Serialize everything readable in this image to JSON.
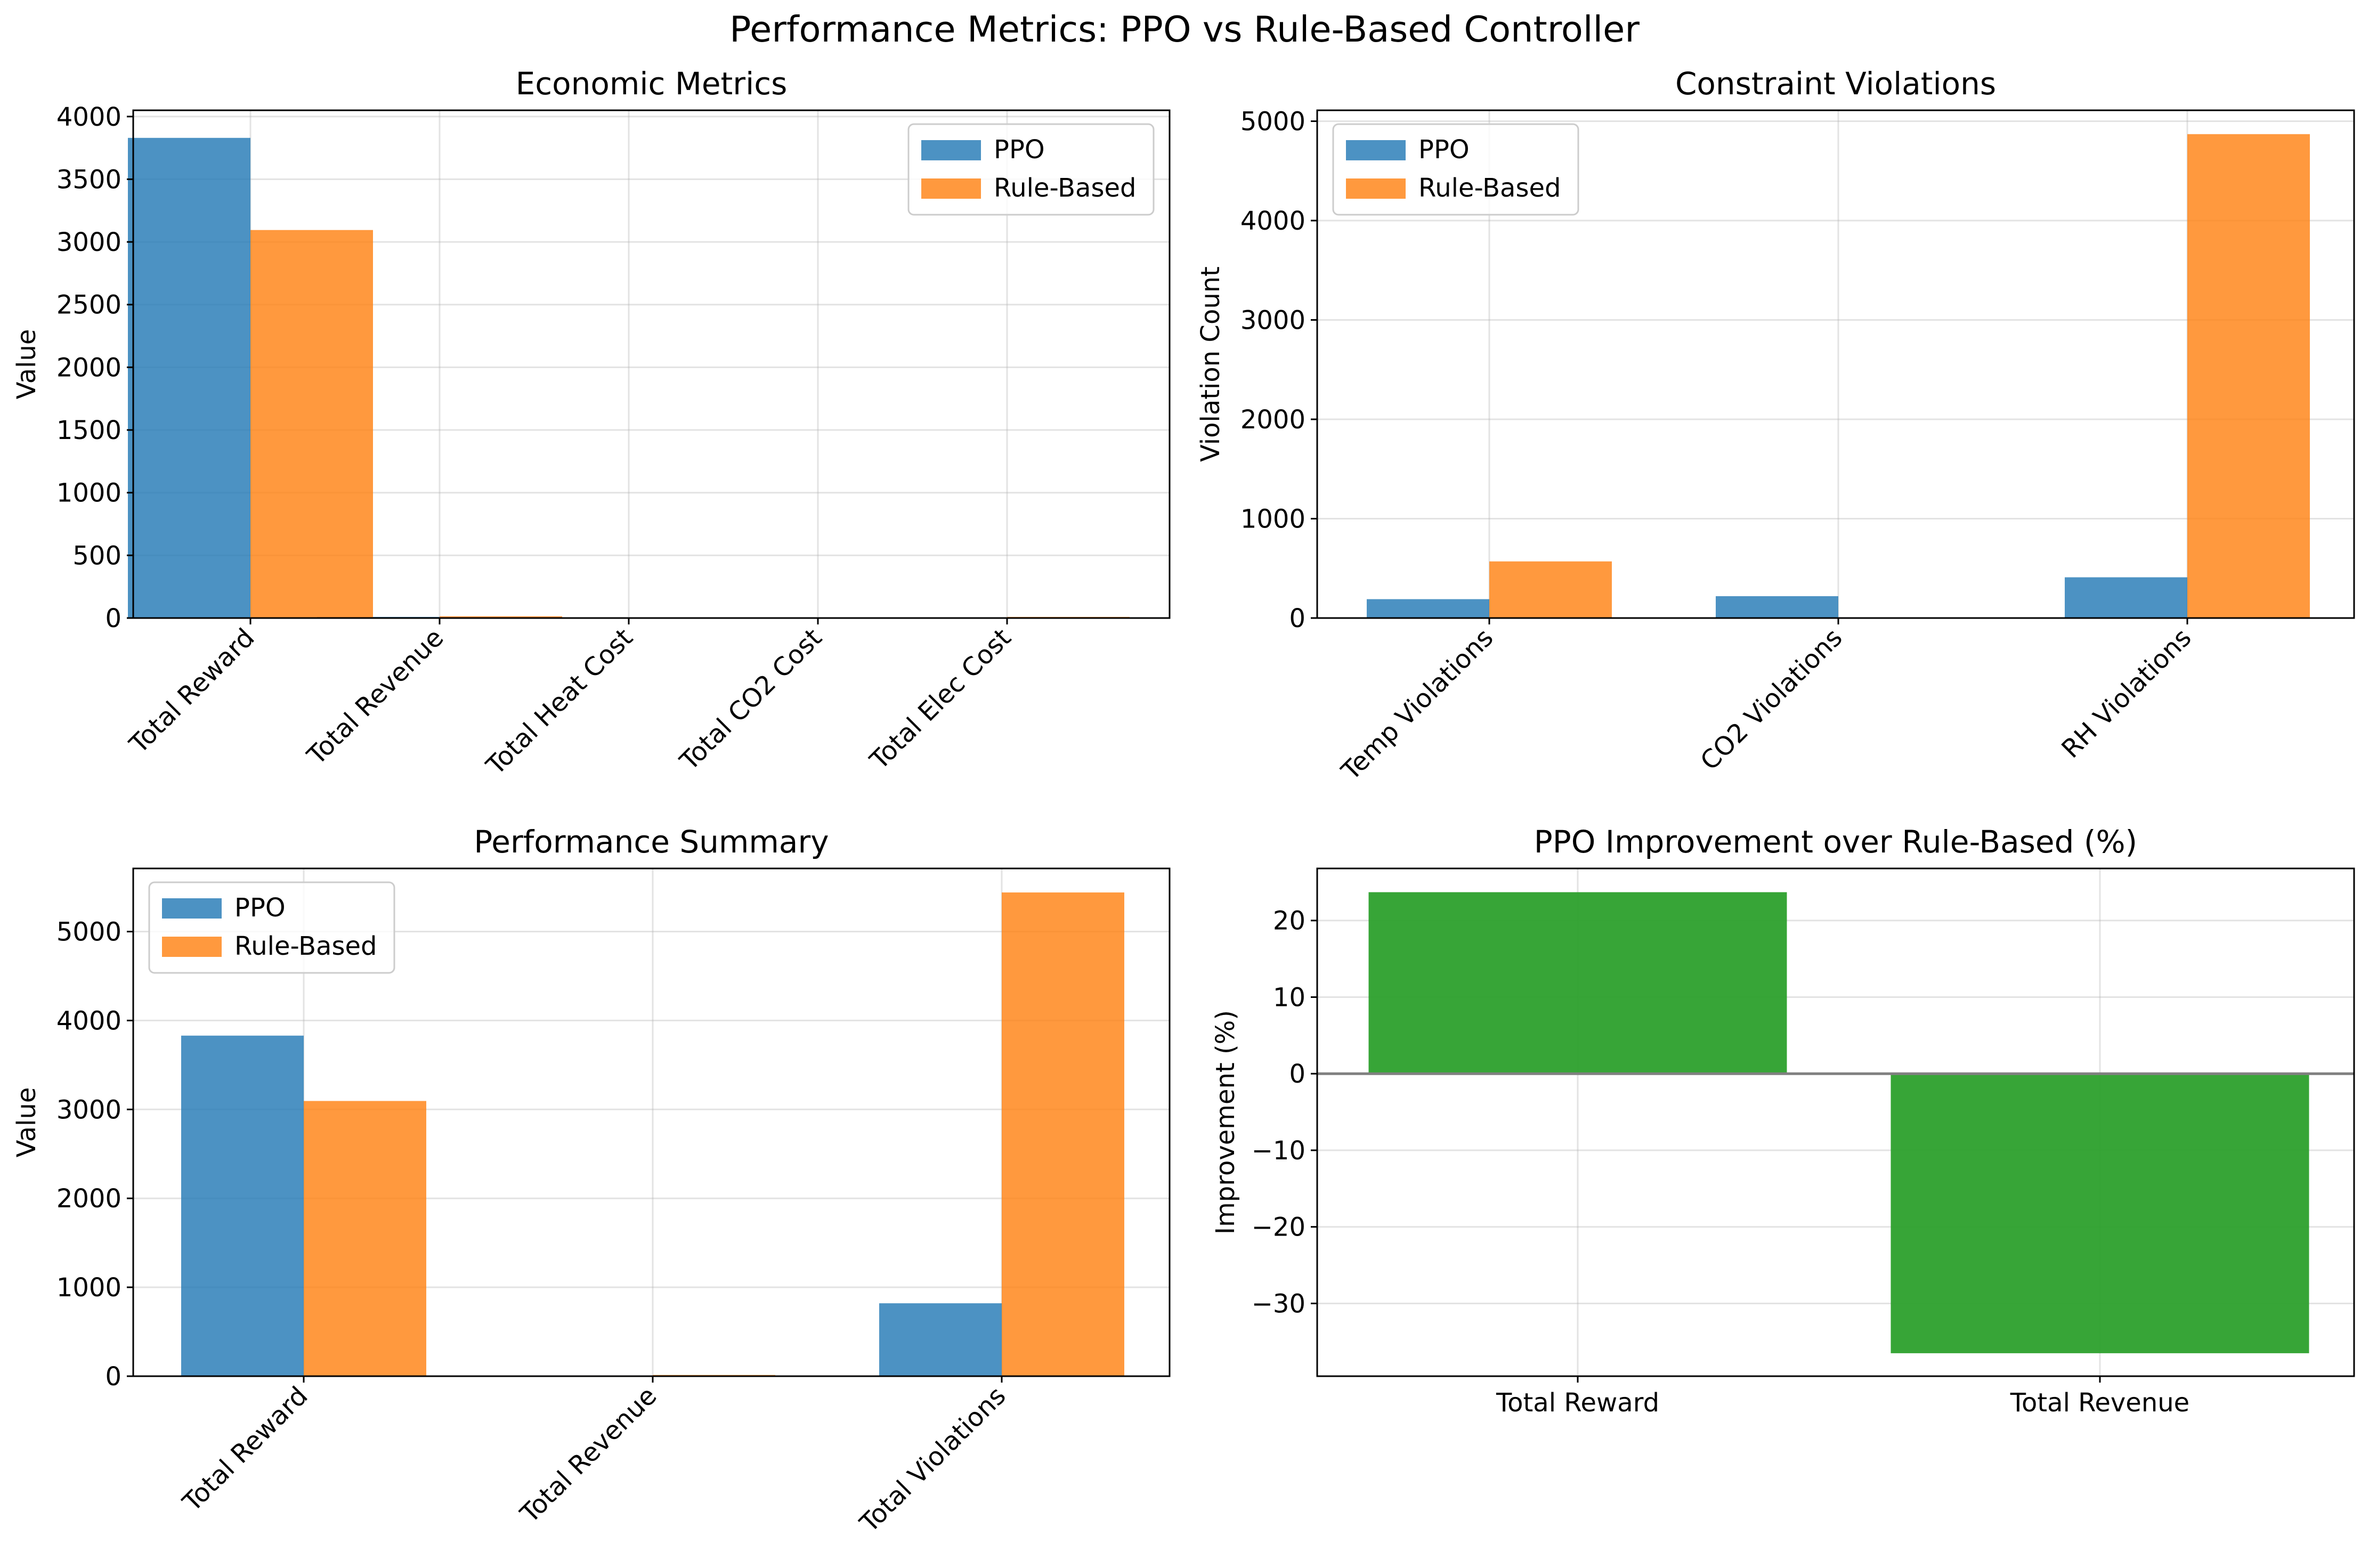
{
  "figure": {
    "suptitle": "Performance Metrics: PPO vs Rule-Based Controller"
  },
  "colors": {
    "ppo": "#1f77b4",
    "rule_based": "#ff7f0e",
    "improvement": "#2ca02c",
    "grid": "#b0b0b0",
    "zero_line": "#808080"
  },
  "chart_data": [
    {
      "type": "bar",
      "title": "Economic Metrics",
      "xlabel": "",
      "ylabel": "Value",
      "categories": [
        "Total Reward",
        "Total Revenue",
        "Total Heat Cost",
        "Total CO2 Cost",
        "Total Elec Cost"
      ],
      "series": [
        {
          "name": "PPO",
          "values": [
            3830,
            9,
            5,
            2,
            3
          ]
        },
        {
          "name": "Rule-Based",
          "values": [
            3095,
            14,
            6,
            2,
            9
          ]
        }
      ],
      "ylim": [
        0,
        4050
      ],
      "yticks": [
        0,
        500,
        1000,
        1500,
        2000,
        2500,
        3000,
        3500,
        4000
      ],
      "legend": "upper-right",
      "grid": true,
      "xtick_rotation": 45
    },
    {
      "type": "bar",
      "title": "Constraint Violations",
      "xlabel": "",
      "ylabel": "Violation Count",
      "categories": [
        "Temp Violations",
        "CO2 Violations",
        "RH Violations"
      ],
      "series": [
        {
          "name": "PPO",
          "values": [
            190,
            220,
            410
          ]
        },
        {
          "name": "Rule-Based",
          "values": [
            570,
            0,
            4870
          ]
        }
      ],
      "ylim": [
        0,
        5110
      ],
      "yticks": [
        0,
        1000,
        2000,
        3000,
        4000,
        5000
      ],
      "legend": "upper-left",
      "grid": true,
      "xtick_rotation": 45
    },
    {
      "type": "bar",
      "title": "Performance Summary",
      "xlabel": "",
      "ylabel": "Value",
      "categories": [
        "Total Reward",
        "Total Revenue",
        "Total Violations"
      ],
      "series": [
        {
          "name": "PPO",
          "values": [
            3830,
            9,
            820
          ]
        },
        {
          "name": "Rule-Based",
          "values": [
            3095,
            14,
            5440
          ]
        }
      ],
      "ylim": [
        0,
        5710
      ],
      "yticks": [
        0,
        1000,
        2000,
        3000,
        4000,
        5000
      ],
      "legend": "upper-left",
      "grid": true,
      "xtick_rotation": 45
    },
    {
      "type": "bar",
      "title": "PPO Improvement over Rule-Based (%)",
      "xlabel": "",
      "ylabel": "Improvement (%)",
      "categories": [
        "Total Reward",
        "Total Revenue"
      ],
      "series": [
        {
          "values": [
            23.7,
            -36.5
          ]
        }
      ],
      "ylim": [
        -39.5,
        26.8
      ],
      "yticks": [
        -30,
        -20,
        -10,
        0,
        10,
        20
      ],
      "zero_line": true,
      "grid": true,
      "xtick_rotation": 0
    }
  ]
}
